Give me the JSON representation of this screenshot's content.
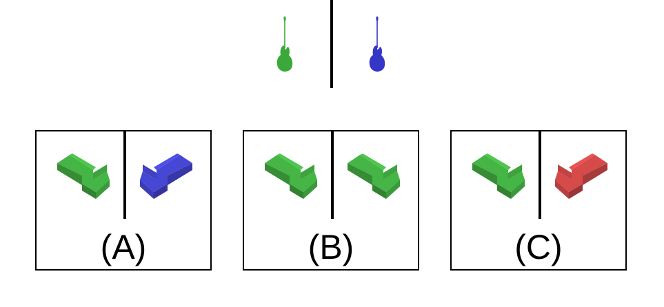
{
  "prompt": {
    "left_object": {
      "icon": "bass-guitar-icon",
      "color": "#3aa83a"
    },
    "right_object": {
      "icon": "bass-guitar-icon",
      "color": "#3535c8"
    }
  },
  "options": [
    {
      "label": "(A)",
      "left": {
        "icon": "l-block-icon",
        "color": "#45b545",
        "mirrored": false
      },
      "right": {
        "icon": "l-block-icon",
        "color": "#4747d6",
        "mirrored": true
      }
    },
    {
      "label": "(B)",
      "left": {
        "icon": "l-block-icon",
        "color": "#45b545",
        "mirrored": false
      },
      "right": {
        "icon": "l-block-icon",
        "color": "#45b545",
        "mirrored": false
      }
    },
    {
      "label": "(C)",
      "left": {
        "icon": "l-block-icon",
        "color": "#45b545",
        "mirrored": false
      },
      "right": {
        "icon": "l-block-icon",
        "color": "#d64a4a",
        "mirrored": true
      }
    }
  ]
}
